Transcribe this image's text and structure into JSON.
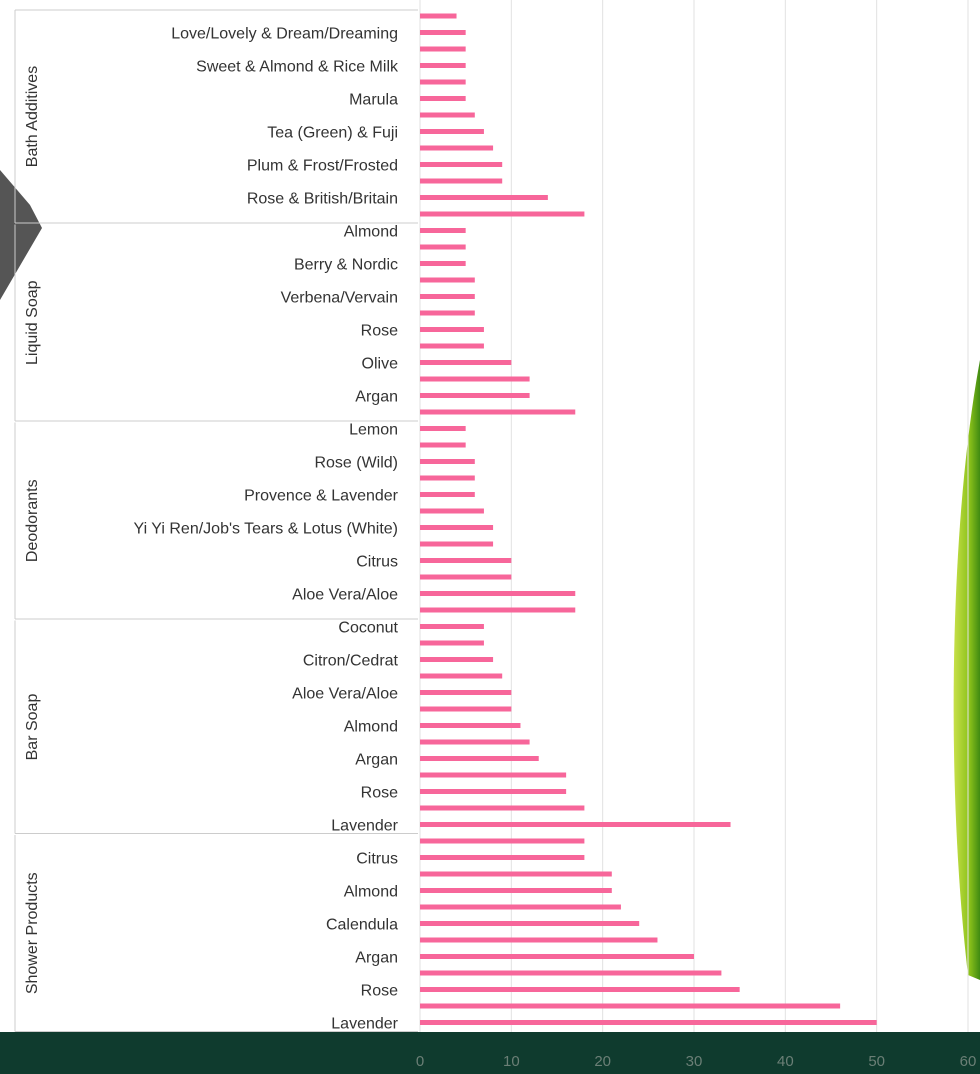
{
  "chart_data": {
    "type": "grouped-hbar",
    "color": "#f7669a",
    "xlim": [
      0,
      60
    ],
    "xticks": [
      0,
      10,
      20,
      30,
      40,
      50,
      60
    ],
    "grid": true,
    "groups": [
      {
        "label": "Bath Additives",
        "categories": [
          null,
          "Love/Lovely & Dream/Dreaming",
          null,
          "Sweet & Almond & Rice Milk",
          null,
          "Marula",
          null,
          "Tea (Green) & Fuji",
          null,
          "Plum & Frost/Frosted",
          null,
          "Rose & British/Britain",
          null
        ],
        "values": [
          4,
          5,
          5,
          5,
          5,
          5,
          6,
          7,
          8,
          9,
          9,
          14,
          18
        ]
      },
      {
        "label": "Liquid Soap",
        "categories": [
          "Almond",
          null,
          "Berry & Nordic",
          null,
          "Verbena/Vervain",
          null,
          "Rose",
          null,
          "Olive",
          null,
          "Argan",
          null
        ],
        "values": [
          5,
          5,
          5,
          6,
          6,
          6,
          7,
          7,
          10,
          12,
          12,
          17
        ]
      },
      {
        "label": "Deodorants",
        "categories": [
          "Lemon",
          null,
          "Rose (Wild)",
          null,
          "Provence & Lavender",
          null,
          "Yi Yi Ren/Job's Tears & Lotus (White)",
          null,
          "Citrus",
          null,
          "Aloe Vera/Aloe",
          null
        ],
        "values": [
          5,
          5,
          6,
          6,
          6,
          7,
          8,
          8,
          10,
          10,
          17,
          17
        ]
      },
      {
        "label": "Bar Soap",
        "categories": [
          "Coconut",
          null,
          "Citron/Cedrat",
          null,
          "Aloe Vera/Aloe",
          null,
          "Almond",
          null,
          "Argan",
          null,
          "Rose",
          null,
          "Lavender"
        ],
        "values": [
          7,
          7,
          8,
          9,
          10,
          10,
          11,
          12,
          13,
          16,
          16,
          18,
          34
        ]
      },
      {
        "label": "Shower Products",
        "categories": [
          null,
          "Citrus",
          null,
          "Almond",
          null,
          "Calendula",
          null,
          "Argan",
          null,
          "Rose",
          null,
          "Lavender"
        ],
        "values": [
          18,
          18,
          21,
          21,
          22,
          24,
          26,
          30,
          33,
          35,
          46,
          50
        ]
      }
    ]
  }
}
